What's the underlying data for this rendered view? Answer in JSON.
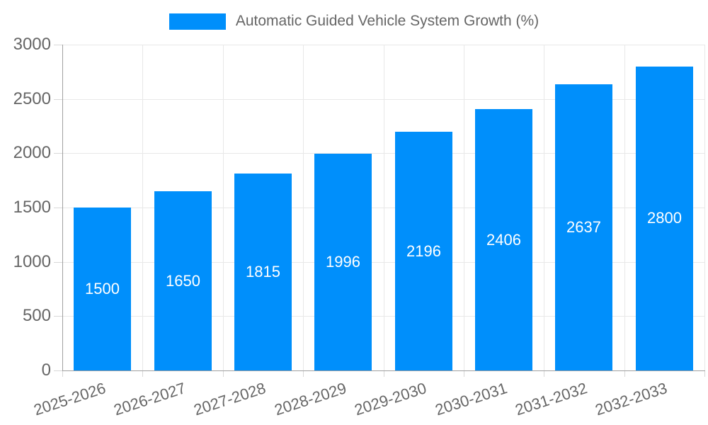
{
  "chart_data": {
    "type": "bar",
    "title": "Automatic Guided Vehicle System Growth (%)",
    "legend_position": "top",
    "categories": [
      "2025-2026",
      "2026-2027",
      "2027-2028",
      "2028-2029",
      "2029-2030",
      "2030-2031",
      "2031-2032",
      "2032-2033"
    ],
    "series": [
      {
        "name": "Automatic Guided Vehicle System Growth (%)",
        "values": [
          1500,
          1650,
          1815,
          1996,
          2196,
          2406,
          2637,
          2800
        ]
      }
    ],
    "value_labels": [
      "1500",
      "1650",
      "1815",
      "1996",
      "2196",
      "2406",
      "2637",
      "2800"
    ],
    "xlabel": "",
    "ylabel": "",
    "ylim": [
      0,
      3000
    ],
    "yticks": [
      0,
      500,
      1000,
      1500,
      2000,
      2500,
      3000
    ],
    "grid": true,
    "x_label_rotation_deg": -18,
    "colors": {
      "bar": "#008ffb",
      "value_label": "#ffffff",
      "axis_text": "#666666",
      "gridline": "#e8e8e8",
      "axis_line": "#a0a0a0",
      "background": "#ffffff"
    }
  }
}
